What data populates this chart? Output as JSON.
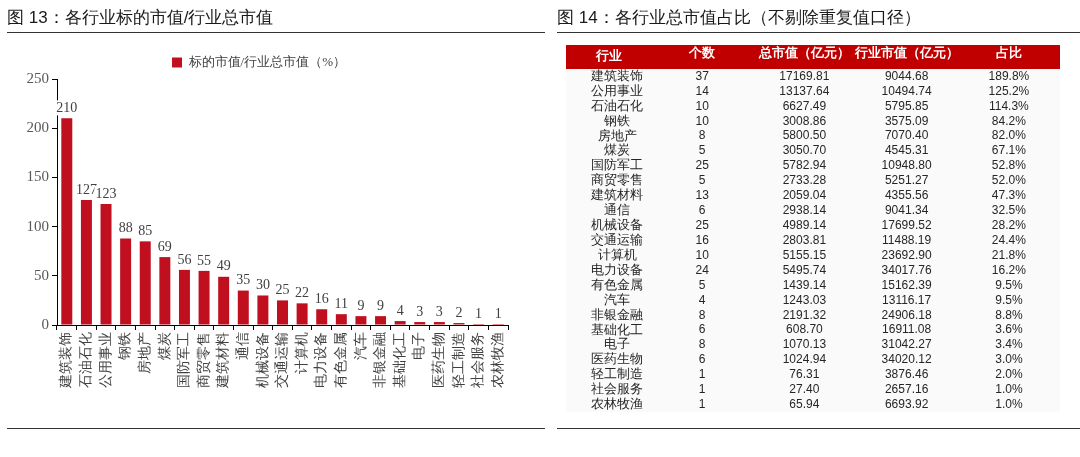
{
  "chart_data": [
    {
      "type": "bar",
      "title": "图 13：各行业标的市值/行业总市值",
      "categories": [
        "建筑装饰",
        "石油石化",
        "公用事业",
        "钢铁",
        "房地产",
        "煤炭",
        "国防军工",
        "商贸零售",
        "建筑材料",
        "通信",
        "机械设备",
        "交通运输",
        "计算机",
        "电力设备",
        "有色金属",
        "汽车",
        "非银金融",
        "基础化工",
        "电子",
        "医药生物",
        "轻工制造",
        "社会服务",
        "农林牧渔"
      ],
      "series": [
        {
          "name": "标的市值/行业总市值（%）",
          "color": "#c00f1e",
          "values": [
            210,
            127,
            123,
            88,
            85,
            69,
            56,
            55,
            49,
            35,
            30,
            25,
            22,
            16,
            11,
            9,
            9,
            4,
            3,
            3,
            2,
            1,
            1
          ]
        }
      ],
      "ylim": [
        0,
        250
      ],
      "yticks": [
        0,
        50,
        100,
        150,
        200,
        250
      ],
      "grid": false,
      "legend": "top",
      "data_labels": true
    },
    {
      "type": "heatmap",
      "title": "图 14：各行业总市值占比（不剔除重复值口径）",
      "ylabel": "行业",
      "categories": [
        "个数",
        "总市值（亿元）",
        "行业市值（亿元）",
        "占比"
      ],
      "y_categories": [
        "建筑装饰",
        "公用事业",
        "石油石化",
        "钢铁",
        "房地产",
        "煤炭",
        "国防军工",
        "商贸零售",
        "建筑材料",
        "通信",
        "机械设备",
        "交通运输",
        "计算机",
        "电力设备",
        "有色金属",
        "汽车",
        "非银金融",
        "基础化工",
        "电子",
        "医药生物",
        "轻工制造",
        "社会服务",
        "农林牧渔"
      ],
      "cells": [
        [
          37,
          17169.81,
          9044.68,
          189.8
        ],
        [
          14,
          13137.64,
          10494.74,
          125.2
        ],
        [
          10,
          6627.49,
          5795.85,
          114.3
        ],
        [
          10,
          3008.86,
          3575.09,
          84.2
        ],
        [
          8,
          5800.5,
          7070.4,
          82.0
        ],
        [
          5,
          3050.7,
          4545.31,
          67.1
        ],
        [
          25,
          5782.94,
          10948.8,
          52.8
        ],
        [
          5,
          2733.28,
          5251.27,
          52.0
        ],
        [
          13,
          2059.04,
          4355.56,
          47.3
        ],
        [
          6,
          2938.14,
          9041.34,
          32.5
        ],
        [
          25,
          4989.14,
          17699.52,
          28.2
        ],
        [
          16,
          2803.81,
          11488.19,
          24.4
        ],
        [
          10,
          5155.15,
          23692.9,
          21.8
        ],
        [
          24,
          5495.74,
          34017.76,
          16.2
        ],
        [
          5,
          1439.14,
          15162.39,
          9.5
        ],
        [
          4,
          1243.03,
          13116.17,
          9.5
        ],
        [
          8,
          2191.32,
          24906.18,
          8.8
        ],
        [
          6,
          608.7,
          16911.08,
          3.6
        ],
        [
          8,
          1070.13,
          31042.27,
          3.4
        ],
        [
          6,
          1024.94,
          34020.12,
          3.0
        ],
        [
          1,
          76.31,
          3876.46,
          2.0
        ],
        [
          1,
          27.4,
          2657.16,
          1.0
        ],
        [
          1,
          65.94,
          6693.92,
          1.0
        ]
      ],
      "cell_labels": [
        [
          "37",
          "17169.81",
          "9044.68",
          "189.8%"
        ],
        [
          "14",
          "13137.64",
          "10494.74",
          "125.2%"
        ],
        [
          "10",
          "6627.49",
          "5795.85",
          "114.3%"
        ],
        [
          "10",
          "3008.86",
          "3575.09",
          "84.2%"
        ],
        [
          "8",
          "5800.50",
          "7070.40",
          "82.0%"
        ],
        [
          "5",
          "3050.70",
          "4545.31",
          "67.1%"
        ],
        [
          "25",
          "5782.94",
          "10948.80",
          "52.8%"
        ],
        [
          "5",
          "2733.28",
          "5251.27",
          "52.0%"
        ],
        [
          "13",
          "2059.04",
          "4355.56",
          "47.3%"
        ],
        [
          "6",
          "2938.14",
          "9041.34",
          "32.5%"
        ],
        [
          "25",
          "4989.14",
          "17699.52",
          "28.2%"
        ],
        [
          "16",
          "2803.81",
          "11488.19",
          "24.4%"
        ],
        [
          "10",
          "5155.15",
          "23692.90",
          "21.8%"
        ],
        [
          "24",
          "5495.74",
          "34017.76",
          "16.2%"
        ],
        [
          "5",
          "1439.14",
          "15162.39",
          "9.5%"
        ],
        [
          "4",
          "1243.03",
          "13116.17",
          "9.5%"
        ],
        [
          "8",
          "2191.32",
          "24906.18",
          "8.8%"
        ],
        [
          "6",
          "608.70",
          "16911.08",
          "3.6%"
        ],
        [
          "8",
          "1070.13",
          "31042.27",
          "3.4%"
        ],
        [
          "6",
          "1024.94",
          "34020.12",
          "3.0%"
        ],
        [
          "1",
          "76.31",
          "3876.46",
          "2.0%"
        ],
        [
          "1",
          "27.40",
          "2657.16",
          "1.0%"
        ],
        [
          "1",
          "65.94",
          "6693.92",
          "1.0%"
        ]
      ]
    }
  ]
}
